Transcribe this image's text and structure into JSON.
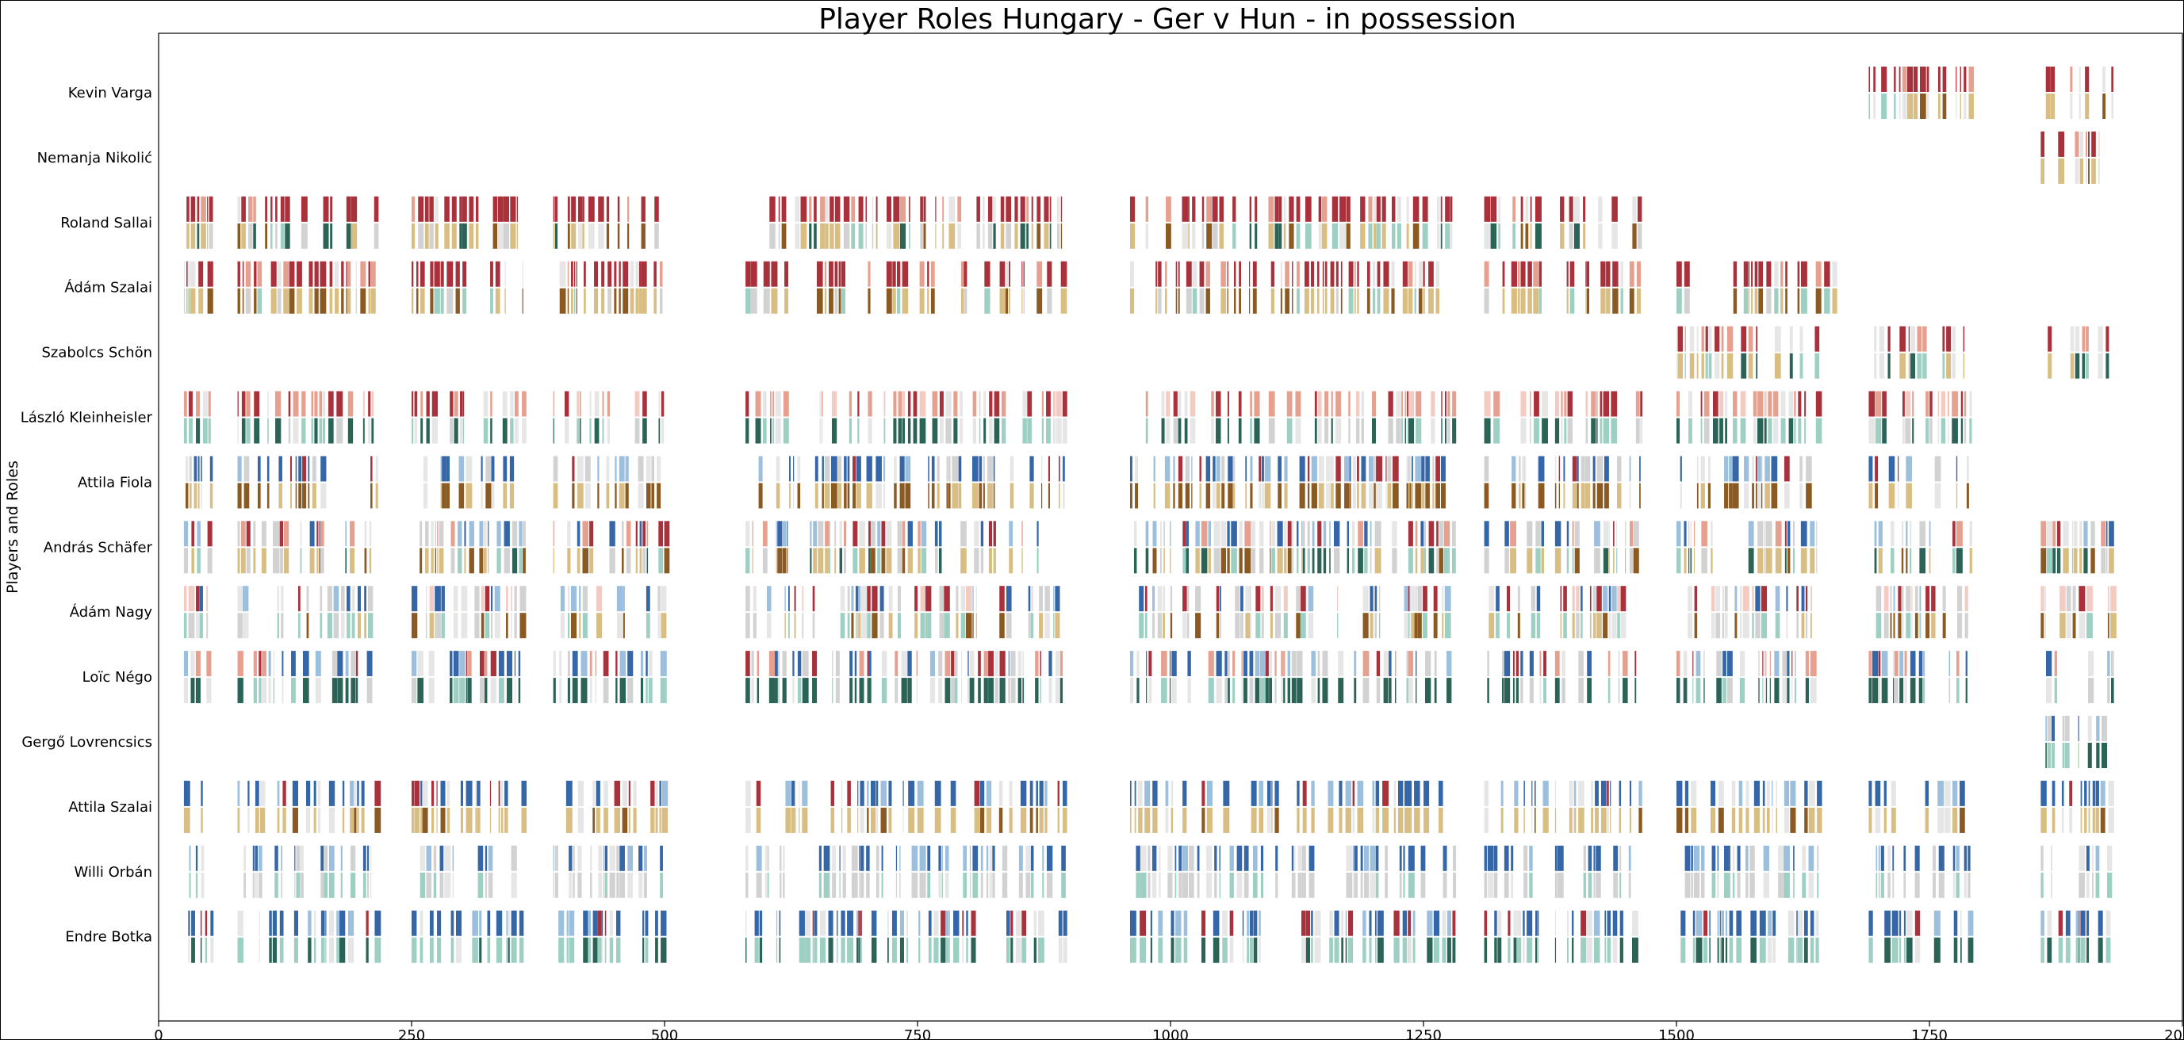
{
  "chart_data": {
    "type": "event_strip",
    "title": "Player Roles Hungary - Ger v Hun - in possession",
    "ylabel": "Players and Roles",
    "xlabel": "",
    "xlim": [
      0,
      2000
    ],
    "xticks": [
      0,
      250,
      500,
      750,
      1000,
      1250,
      1500,
      1750,
      2000
    ],
    "xtick_labels": [
      "0",
      "250",
      "500",
      "750",
      "1000",
      "1250",
      "1500",
      "1750",
      "2000"
    ],
    "grid": false,
    "legend": "none",
    "colors": {
      "red": "#a8313b",
      "pink": "#e6a08f",
      "lightpink": "#f2cbc2",
      "grey": "#d2d2d2",
      "lightgrey": "#e6e6e6",
      "blue": "#3566a8",
      "lightblue": "#9bbfdc",
      "tan": "#d9be84",
      "brown": "#8a5a22",
      "darkgreen": "#2b6457",
      "mint": "#9dcfc2",
      "lightgreen": "#a8d08f"
    },
    "players": [
      {
        "name": "Kevin Varga",
        "segments": [
          [
            1690,
            1790
          ],
          [
            1865,
            1930
          ]
        ],
        "top": [
          "red",
          "red",
          "pink",
          "red",
          "lightgrey",
          "red"
        ],
        "bottom": [
          "lightgrey",
          "mint",
          "tan",
          "brown",
          "lightgrey",
          "tan"
        ]
      },
      {
        "name": "Nemanja Nikolić",
        "segments": [
          [
            1860,
            1930
          ]
        ],
        "top": [
          "red",
          "pink",
          "red",
          "lightgrey"
        ],
        "bottom": [
          "tan",
          "brown",
          "lightgrey",
          "tan"
        ]
      },
      {
        "name": "Roland Sallai",
        "segments": [
          [
            25,
            52
          ],
          [
            78,
            215
          ],
          [
            250,
            360
          ],
          [
            390,
            500
          ],
          [
            580,
            895
          ],
          [
            960,
            1235
          ],
          [
            1235,
            1280
          ],
          [
            1310,
            1370
          ],
          [
            1380,
            1465
          ]
        ],
        "top": [
          "red",
          "red",
          "pink",
          "red",
          "lightgrey",
          "red",
          "red"
        ],
        "bottom": [
          "mint",
          "tan",
          "grey",
          "brown",
          "tan",
          "lightgrey",
          "darkgreen"
        ]
      },
      {
        "name": "Ádám Szalai",
        "segments": [
          [
            25,
            52
          ],
          [
            78,
            215
          ],
          [
            250,
            360
          ],
          [
            390,
            500
          ],
          [
            580,
            895
          ],
          [
            960,
            1235
          ],
          [
            1235,
            1280
          ],
          [
            1310,
            1370
          ],
          [
            1380,
            1465
          ],
          [
            1500,
            1660
          ]
        ],
        "top": [
          "red",
          "red",
          "pink",
          "red",
          "lightgrey",
          "red",
          "red"
        ],
        "bottom": [
          "brown",
          "tan",
          "grey",
          "brown",
          "tan",
          "mint",
          "tan"
        ]
      },
      {
        "name": "Szabolcs Schön",
        "segments": [
          [
            1500,
            1640
          ],
          [
            1690,
            1790
          ],
          [
            1860,
            1930
          ]
        ],
        "top": [
          "red",
          "pink",
          "red",
          "lightgrey",
          "red"
        ],
        "bottom": [
          "mint",
          "tan",
          "lightgrey",
          "darkgreen",
          "tan"
        ]
      },
      {
        "name": "László Kleinheisler",
        "segments": [
          [
            25,
            52
          ],
          [
            78,
            215
          ],
          [
            250,
            360
          ],
          [
            390,
            500
          ],
          [
            580,
            895
          ],
          [
            960,
            1235
          ],
          [
            1235,
            1280
          ],
          [
            1310,
            1370
          ],
          [
            1380,
            1465
          ],
          [
            1500,
            1640
          ],
          [
            1690,
            1790
          ]
        ],
        "top": [
          "pink",
          "lightpink",
          "red",
          "pink",
          "lightgrey",
          "red"
        ],
        "bottom": [
          "darkgreen",
          "mint",
          "lightgrey",
          "mint",
          "darkgreen",
          "grey"
        ]
      },
      {
        "name": "Attila Fiola",
        "segments": [
          [
            25,
            52
          ],
          [
            78,
            215
          ],
          [
            250,
            360
          ],
          [
            390,
            500
          ],
          [
            580,
            895
          ],
          [
            960,
            1235
          ],
          [
            1235,
            1280
          ],
          [
            1310,
            1370
          ],
          [
            1380,
            1465
          ],
          [
            1500,
            1640
          ],
          [
            1690,
            1790
          ]
        ],
        "top": [
          "blue",
          "lightblue",
          "red",
          "grey",
          "blue",
          "lightgrey"
        ],
        "bottom": [
          "brown",
          "tan",
          "brown",
          "lightgrey",
          "brown",
          "tan"
        ]
      },
      {
        "name": "András Schäfer",
        "segments": [
          [
            25,
            52
          ],
          [
            78,
            215
          ],
          [
            250,
            360
          ],
          [
            390,
            500
          ],
          [
            580,
            895
          ],
          [
            960,
            1235
          ],
          [
            1235,
            1280
          ],
          [
            1310,
            1370
          ],
          [
            1380,
            1465
          ],
          [
            1500,
            1640
          ],
          [
            1690,
            1790
          ],
          [
            1860,
            1930
          ]
        ],
        "top": [
          "lightblue",
          "grey",
          "blue",
          "red",
          "lightgrey",
          "pink"
        ],
        "bottom": [
          "tan",
          "brown",
          "mint",
          "grey",
          "tan",
          "darkgreen"
        ]
      },
      {
        "name": "Ádám Nagy",
        "segments": [
          [
            25,
            52
          ],
          [
            78,
            215
          ],
          [
            250,
            360
          ],
          [
            390,
            500
          ],
          [
            580,
            895
          ],
          [
            960,
            1235
          ],
          [
            1235,
            1280
          ],
          [
            1310,
            1370
          ],
          [
            1380,
            1465
          ],
          [
            1500,
            1640
          ],
          [
            1690,
            1790
          ],
          [
            1860,
            1930
          ]
        ],
        "top": [
          "lightblue",
          "blue",
          "grey",
          "lightpink",
          "lightgrey",
          "red"
        ],
        "bottom": [
          "mint",
          "grey",
          "tan",
          "lightgrey",
          "brown",
          "mint"
        ]
      },
      {
        "name": "Loïc Négo",
        "segments": [
          [
            25,
            52
          ],
          [
            78,
            215
          ],
          [
            250,
            360
          ],
          [
            390,
            500
          ],
          [
            580,
            895
          ],
          [
            960,
            1235
          ],
          [
            1235,
            1280
          ],
          [
            1310,
            1370
          ],
          [
            1380,
            1465
          ],
          [
            1500,
            1640
          ],
          [
            1690,
            1790
          ],
          [
            1860,
            1930
          ]
        ],
        "top": [
          "grey",
          "blue",
          "red",
          "lightgrey",
          "lightblue",
          "pink"
        ],
        "bottom": [
          "darkgreen",
          "mint",
          "darkgreen",
          "lightgrey",
          "darkgreen",
          "grey"
        ]
      },
      {
        "name": "Gergő Lovrencsics",
        "segments": [
          [
            1860,
            1930
          ]
        ],
        "top": [
          "lightblue",
          "lightgrey",
          "blue",
          "grey"
        ],
        "bottom": [
          "darkgreen",
          "mint",
          "darkgreen",
          "lightgreen"
        ]
      },
      {
        "name": "Attila Szalai",
        "segments": [
          [
            25,
            52
          ],
          [
            78,
            215
          ],
          [
            250,
            360
          ],
          [
            390,
            500
          ],
          [
            580,
            895
          ],
          [
            960,
            1235
          ],
          [
            1235,
            1280
          ],
          [
            1310,
            1370
          ],
          [
            1380,
            1465
          ],
          [
            1500,
            1640
          ],
          [
            1690,
            1790
          ],
          [
            1860,
            1930
          ]
        ],
        "top": [
          "blue",
          "blue",
          "lightblue",
          "blue",
          "lightgrey",
          "red"
        ],
        "bottom": [
          "tan",
          "tan",
          "lightgrey",
          "brown",
          "tan",
          "tan"
        ]
      },
      {
        "name": "Willi Orbán",
        "segments": [
          [
            25,
            52
          ],
          [
            78,
            215
          ],
          [
            250,
            360
          ],
          [
            390,
            500
          ],
          [
            580,
            895
          ],
          [
            960,
            1235
          ],
          [
            1235,
            1280
          ],
          [
            1310,
            1370
          ],
          [
            1380,
            1465
          ],
          [
            1500,
            1640
          ],
          [
            1690,
            1790
          ],
          [
            1860,
            1930
          ]
        ],
        "top": [
          "blue",
          "lightblue",
          "blue",
          "lightgrey",
          "blue",
          "grey"
        ],
        "bottom": [
          "grey",
          "mint",
          "lightgrey",
          "grey",
          "mint",
          "grey"
        ]
      },
      {
        "name": "Endre Botka",
        "segments": [
          [
            25,
            52
          ],
          [
            78,
            215
          ],
          [
            250,
            360
          ],
          [
            390,
            500
          ],
          [
            580,
            895
          ],
          [
            960,
            1235
          ],
          [
            1235,
            1280
          ],
          [
            1310,
            1370
          ],
          [
            1380,
            1465
          ],
          [
            1500,
            1640
          ],
          [
            1690,
            1790
          ],
          [
            1860,
            1930
          ]
        ],
        "top": [
          "blue",
          "blue",
          "lightblue",
          "red",
          "lightgrey",
          "blue"
        ],
        "bottom": [
          "mint",
          "mint",
          "darkgreen",
          "lightgrey",
          "mint",
          "darkgreen"
        ]
      }
    ]
  }
}
